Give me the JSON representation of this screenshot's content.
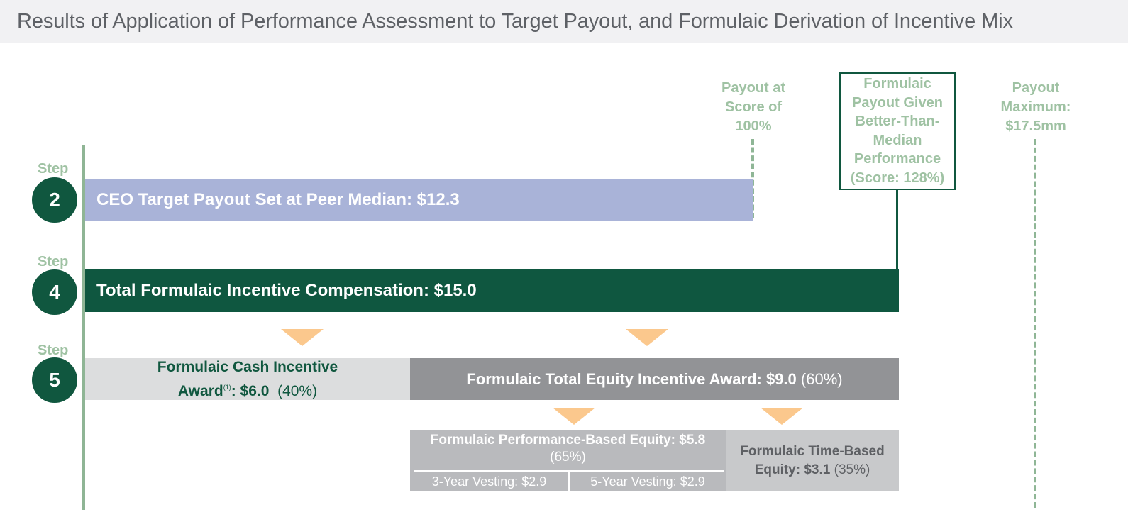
{
  "header": {
    "title": "Results of Application of Performance Assessment to Target Payout, and Formulaic Derivation of Incentive Mix"
  },
  "reference_labels": {
    "payout_100": [
      "Payout at",
      "Score of",
      "100%"
    ],
    "formulaic_payout": [
      "Formulaic",
      "Payout Given",
      "Better-Than-",
      "Median",
      "Performance",
      "(Score: 128%)"
    ],
    "payout_max": [
      "Payout",
      "Maximum:",
      "$17.5mm"
    ]
  },
  "steps": [
    {
      "label": "Step",
      "number": "2"
    },
    {
      "label": "Step",
      "number": "4"
    },
    {
      "label": "Step",
      "number": "5"
    }
  ],
  "bars": {
    "step2": "CEO Target Payout Set at Peer Median: $12.3",
    "step4": "Total Formulaic Incentive Compensation: $15.0"
  },
  "cash": {
    "line1": "Formulaic Cash Incentive",
    "line2_label": "Award",
    "footnote": "(1)",
    "line2_value": ": $6.0",
    "pct": "(40%)"
  },
  "equity": {
    "label": "Formulaic Total Equity Incentive Award: $9.0",
    "pct": "(60%)"
  },
  "performance_equity": {
    "title": "Formulaic Performance-Based Equity: $5.8",
    "pct": "(65%)",
    "vesting_3yr": "3-Year Vesting: $2.9",
    "vesting_5yr": "5-Year Vesting: $2.9"
  },
  "time_equity": {
    "line1": "Formulaic Time-Based",
    "line2": "Equity: $3.1",
    "pct": "(35%)"
  },
  "colors": {
    "dark_green": "#10573f",
    "light_green": "#9fc2a3",
    "target_bar": "#a9b3d8",
    "equity_gray": "#929396",
    "arrow_orange": "#fbc88d"
  }
}
